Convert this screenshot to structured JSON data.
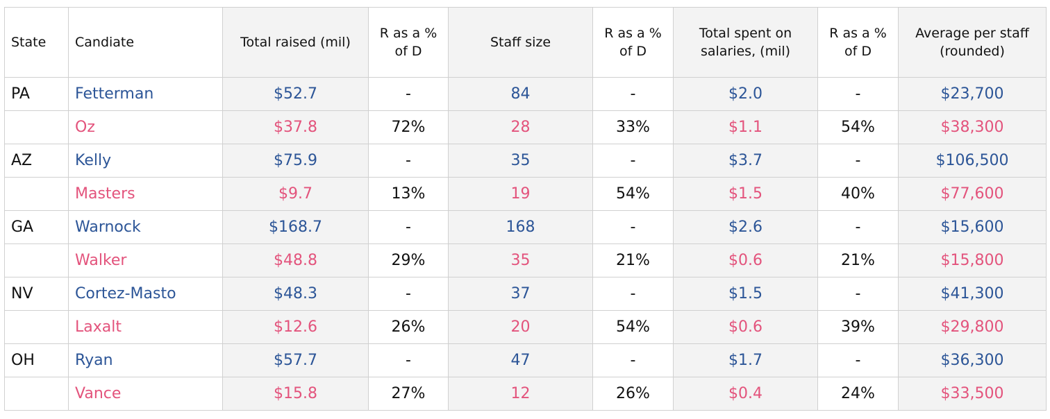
{
  "table": {
    "headers": [
      "State",
      "Candiate",
      "Total raised (mil)",
      "R as a % of D",
      "Staff size",
      "R as a % of D",
      "Total spent on salaries, (mil)",
      "R as a % of D",
      "Average per staff (rounded)"
    ],
    "rows": [
      [
        "PA",
        "Fetterman",
        "$52.7",
        "-",
        "84",
        "-",
        "$2.0",
        "-",
        "$23,700"
      ],
      [
        null,
        "Oz",
        "$37.8",
        "72%",
        "28",
        "33%",
        "$1.1",
        "54%",
        "$38,300"
      ],
      [
        "AZ",
        "Kelly",
        "$75.9",
        "-",
        "35",
        "-",
        "$3.7",
        "-",
        "$106,500"
      ],
      [
        null,
        "Masters",
        "$9.7",
        "13%",
        "19",
        "54%",
        "$1.5",
        "40%",
        "$77,600"
      ],
      [
        "GA",
        "Warnock",
        "$168.7",
        "-",
        "168",
        "-",
        "$2.6",
        "-",
        "$15,600"
      ],
      [
        null,
        "Walker",
        "$48.8",
        "29%",
        "35",
        "21%",
        "$0.6",
        "21%",
        "$15,800"
      ],
      [
        "NV",
        "Cortez-Masto",
        "$48.3",
        "-",
        "37",
        "-",
        "$1.5",
        "-",
        "$41,300"
      ],
      [
        null,
        "Laxalt",
        "$12.6",
        "26%",
        "20",
        "54%",
        "$0.6",
        "39%",
        "$29,800"
      ],
      [
        "OH",
        "Ryan",
        "$57.7",
        "-",
        "47",
        "-",
        "$1.7",
        "-",
        "$36,300"
      ],
      [
        null,
        "Vance",
        "$15.8",
        "27%",
        "12",
        "26%",
        "$0.4",
        "24%",
        "$33,500"
      ]
    ]
  }
}
